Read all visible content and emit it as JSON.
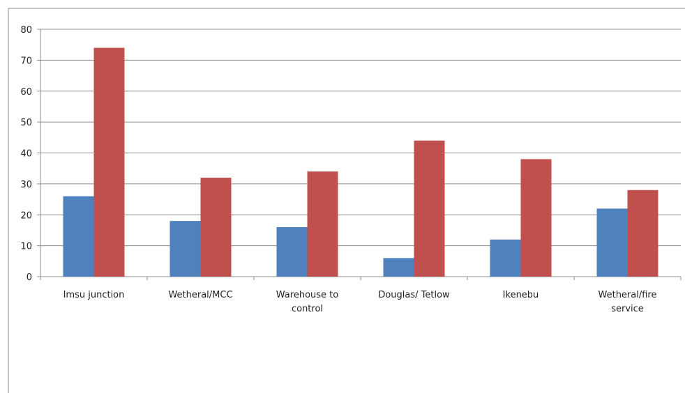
{
  "chart_data": {
    "type": "bar",
    "categories": [
      [
        "Imsu junction"
      ],
      [
        "Wetheral/MCC"
      ],
      [
        "Warehouse to",
        "control"
      ],
      [
        "Douglas/ Tetlow"
      ],
      [
        "Ikenebu"
      ],
      [
        "Wetheral/fire",
        "service"
      ]
    ],
    "series": [
      {
        "color": "#4f81bd",
        "values": [
          26,
          18,
          16,
          6,
          12,
          22
        ]
      },
      {
        "color": "#c0504d",
        "values": [
          74,
          32,
          34,
          44,
          38,
          28
        ]
      }
    ],
    "ylim": [
      0,
      80
    ],
    "yticks": [
      "0",
      "10",
      "20",
      "30",
      "40",
      "50",
      "60",
      "70",
      "80"
    ],
    "grid": true,
    "legend": "none",
    "title": "",
    "xlabel": "",
    "ylabel": ""
  }
}
